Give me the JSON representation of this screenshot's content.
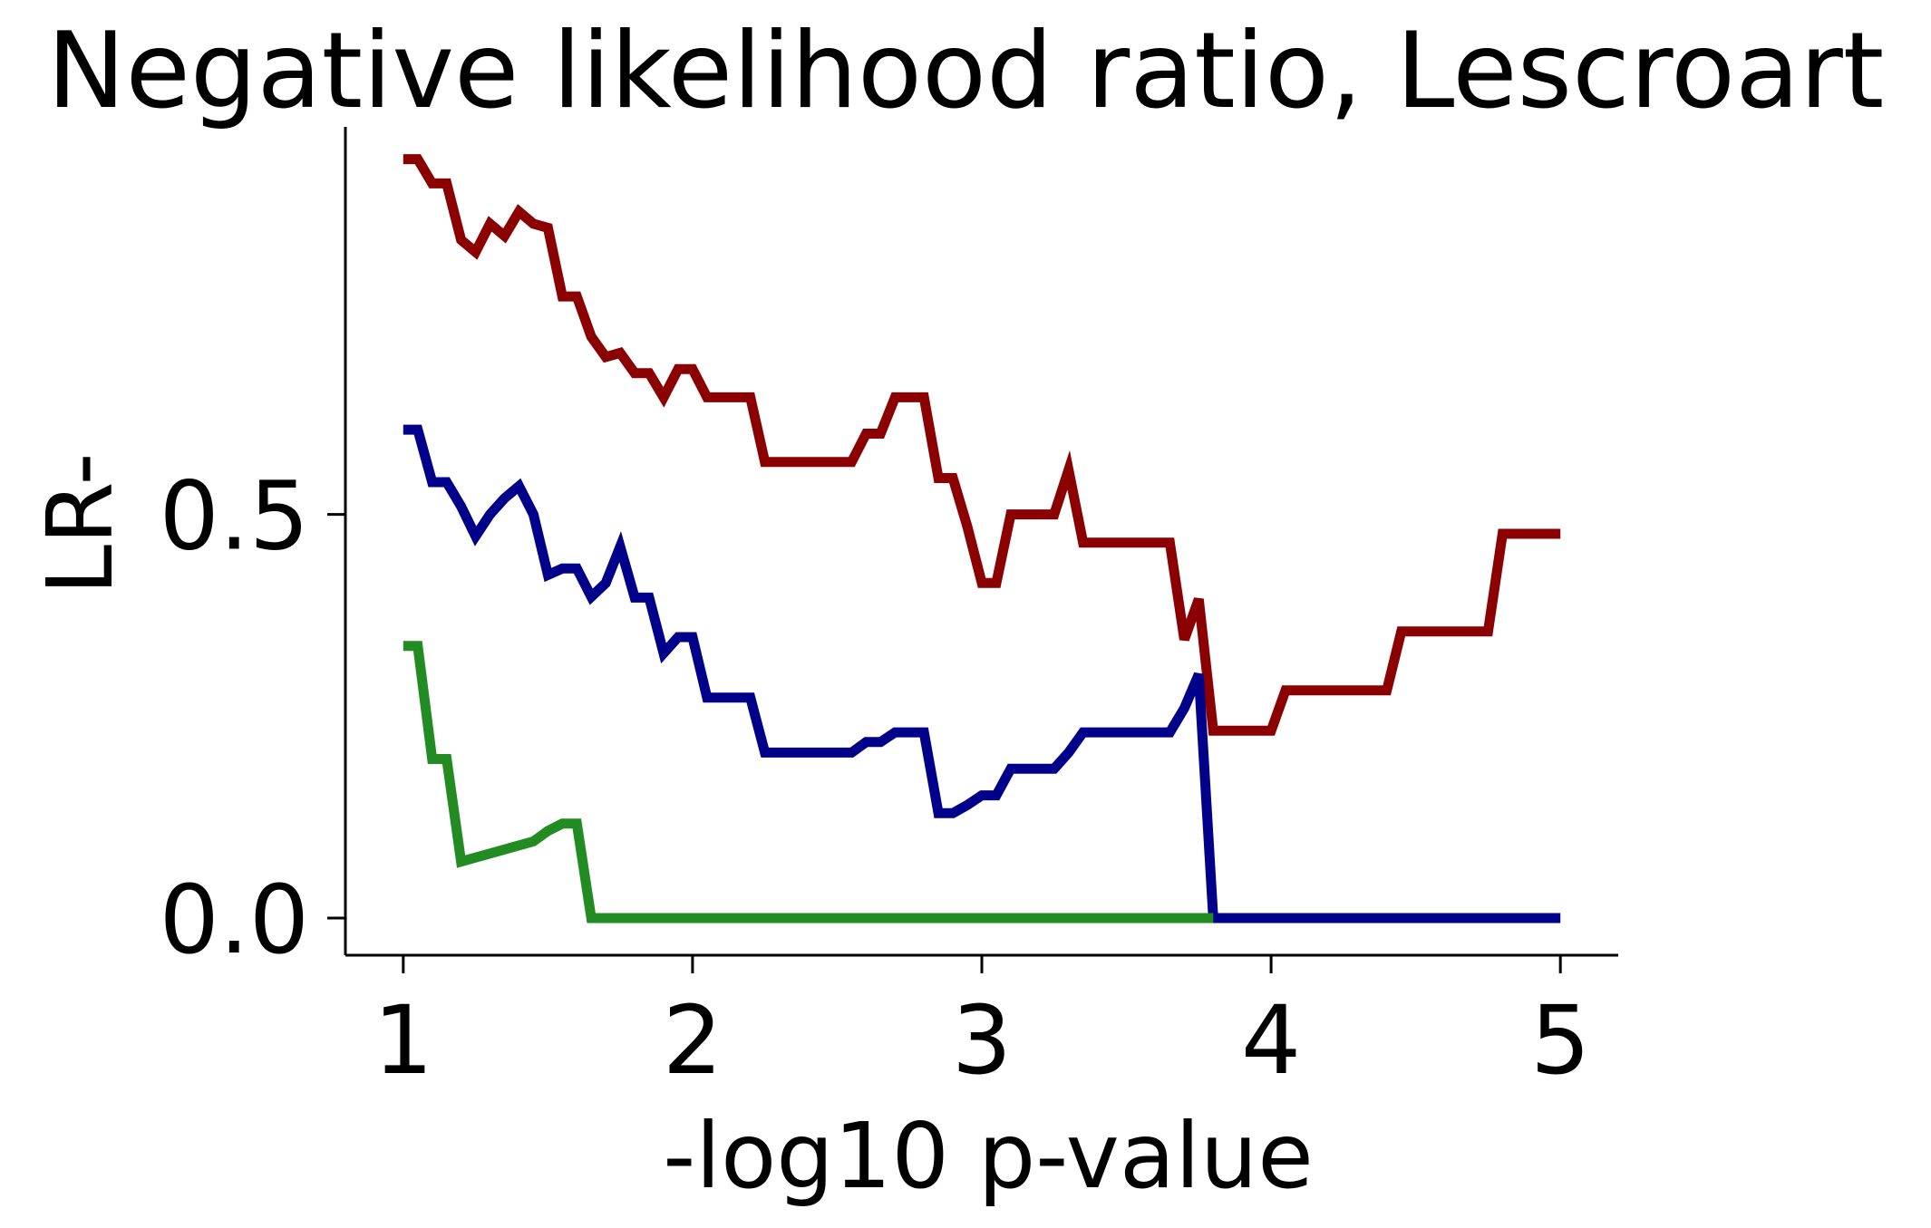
{
  "chart_data": {
    "type": "line",
    "title": "Negative likelihood ratio, Lescroart",
    "xlabel": "-log10 p-value",
    "ylabel": "LR-",
    "xlim": [
      0.8,
      5.2
    ],
    "ylim": [
      -0.046,
      0.98
    ],
    "xticks": [
      1,
      2,
      3,
      4,
      5
    ],
    "yticks": [
      0.0,
      0.5
    ],
    "xtick_labels": [
      "1",
      "2",
      "3",
      "4",
      "5"
    ],
    "ytick_labels": [
      "0.0",
      "0.5"
    ],
    "grid": false,
    "legend": null,
    "series": [
      {
        "color": "#8b0000",
        "x": [
          1.0,
          1.05,
          1.1,
          1.15,
          1.2,
          1.25,
          1.3,
          1.35,
          1.4,
          1.45,
          1.5,
          1.55,
          1.6,
          1.65,
          1.7,
          1.75,
          1.8,
          1.85,
          1.9,
          1.95,
          2.0,
          2.05,
          2.1,
          2.2,
          2.25,
          2.3,
          2.55,
          2.6,
          2.65,
          2.7,
          2.8,
          2.85,
          2.9,
          2.95,
          3.0,
          3.05,
          3.1,
          3.25,
          3.3,
          3.35,
          3.65,
          3.7,
          3.75,
          3.8,
          4.0,
          4.05,
          4.4,
          4.45,
          4.75,
          4.8,
          5.0
        ],
        "y": [
          0.94,
          0.94,
          0.91,
          0.91,
          0.84,
          0.825,
          0.86,
          0.845,
          0.875,
          0.86,
          0.855,
          0.77,
          0.77,
          0.72,
          0.695,
          0.7,
          0.675,
          0.675,
          0.645,
          0.68,
          0.68,
          0.645,
          0.645,
          0.645,
          0.565,
          0.565,
          0.565,
          0.6,
          0.6,
          0.645,
          0.645,
          0.545,
          0.545,
          0.485,
          0.415,
          0.415,
          0.5,
          0.5,
          0.555,
          0.465,
          0.465,
          0.345,
          0.395,
          0.232,
          0.232,
          0.282,
          0.282,
          0.355,
          0.355,
          0.476,
          0.476
        ]
      },
      {
        "color": "#00008b",
        "x": [
          1.0,
          1.05,
          1.1,
          1.15,
          1.2,
          1.25,
          1.3,
          1.35,
          1.4,
          1.45,
          1.5,
          1.55,
          1.6,
          1.65,
          1.7,
          1.75,
          1.8,
          1.85,
          1.9,
          1.95,
          2.0,
          2.05,
          2.1,
          2.2,
          2.25,
          2.3,
          2.55,
          2.6,
          2.65,
          2.7,
          2.8,
          2.85,
          2.9,
          2.95,
          3.0,
          3.05,
          3.1,
          3.25,
          3.3,
          3.35,
          3.65,
          3.7,
          3.75,
          3.8,
          5.0
        ],
        "y": [
          0.605,
          0.605,
          0.54,
          0.54,
          0.51,
          0.473,
          0.5,
          0.52,
          0.535,
          0.5,
          0.425,
          0.433,
          0.433,
          0.398,
          0.415,
          0.46,
          0.397,
          0.397,
          0.328,
          0.348,
          0.348,
          0.273,
          0.273,
          0.273,
          0.205,
          0.205,
          0.205,
          0.218,
          0.218,
          0.23,
          0.23,
          0.13,
          0.13,
          0.14,
          0.152,
          0.152,
          0.185,
          0.185,
          0.205,
          0.23,
          0.23,
          0.26,
          0.302,
          0.0,
          0.0
        ]
      },
      {
        "color": "#228b22",
        "x": [
          1.0,
          1.05,
          1.1,
          1.15,
          1.2,
          1.25,
          1.3,
          1.35,
          1.4,
          1.45,
          1.5,
          1.55,
          1.6,
          1.65,
          3.8
        ],
        "y": [
          0.337,
          0.337,
          0.197,
          0.197,
          0.07,
          0.075,
          0.08,
          0.085,
          0.09,
          0.095,
          0.108,
          0.117,
          0.117,
          0.0,
          0.0
        ]
      }
    ]
  }
}
